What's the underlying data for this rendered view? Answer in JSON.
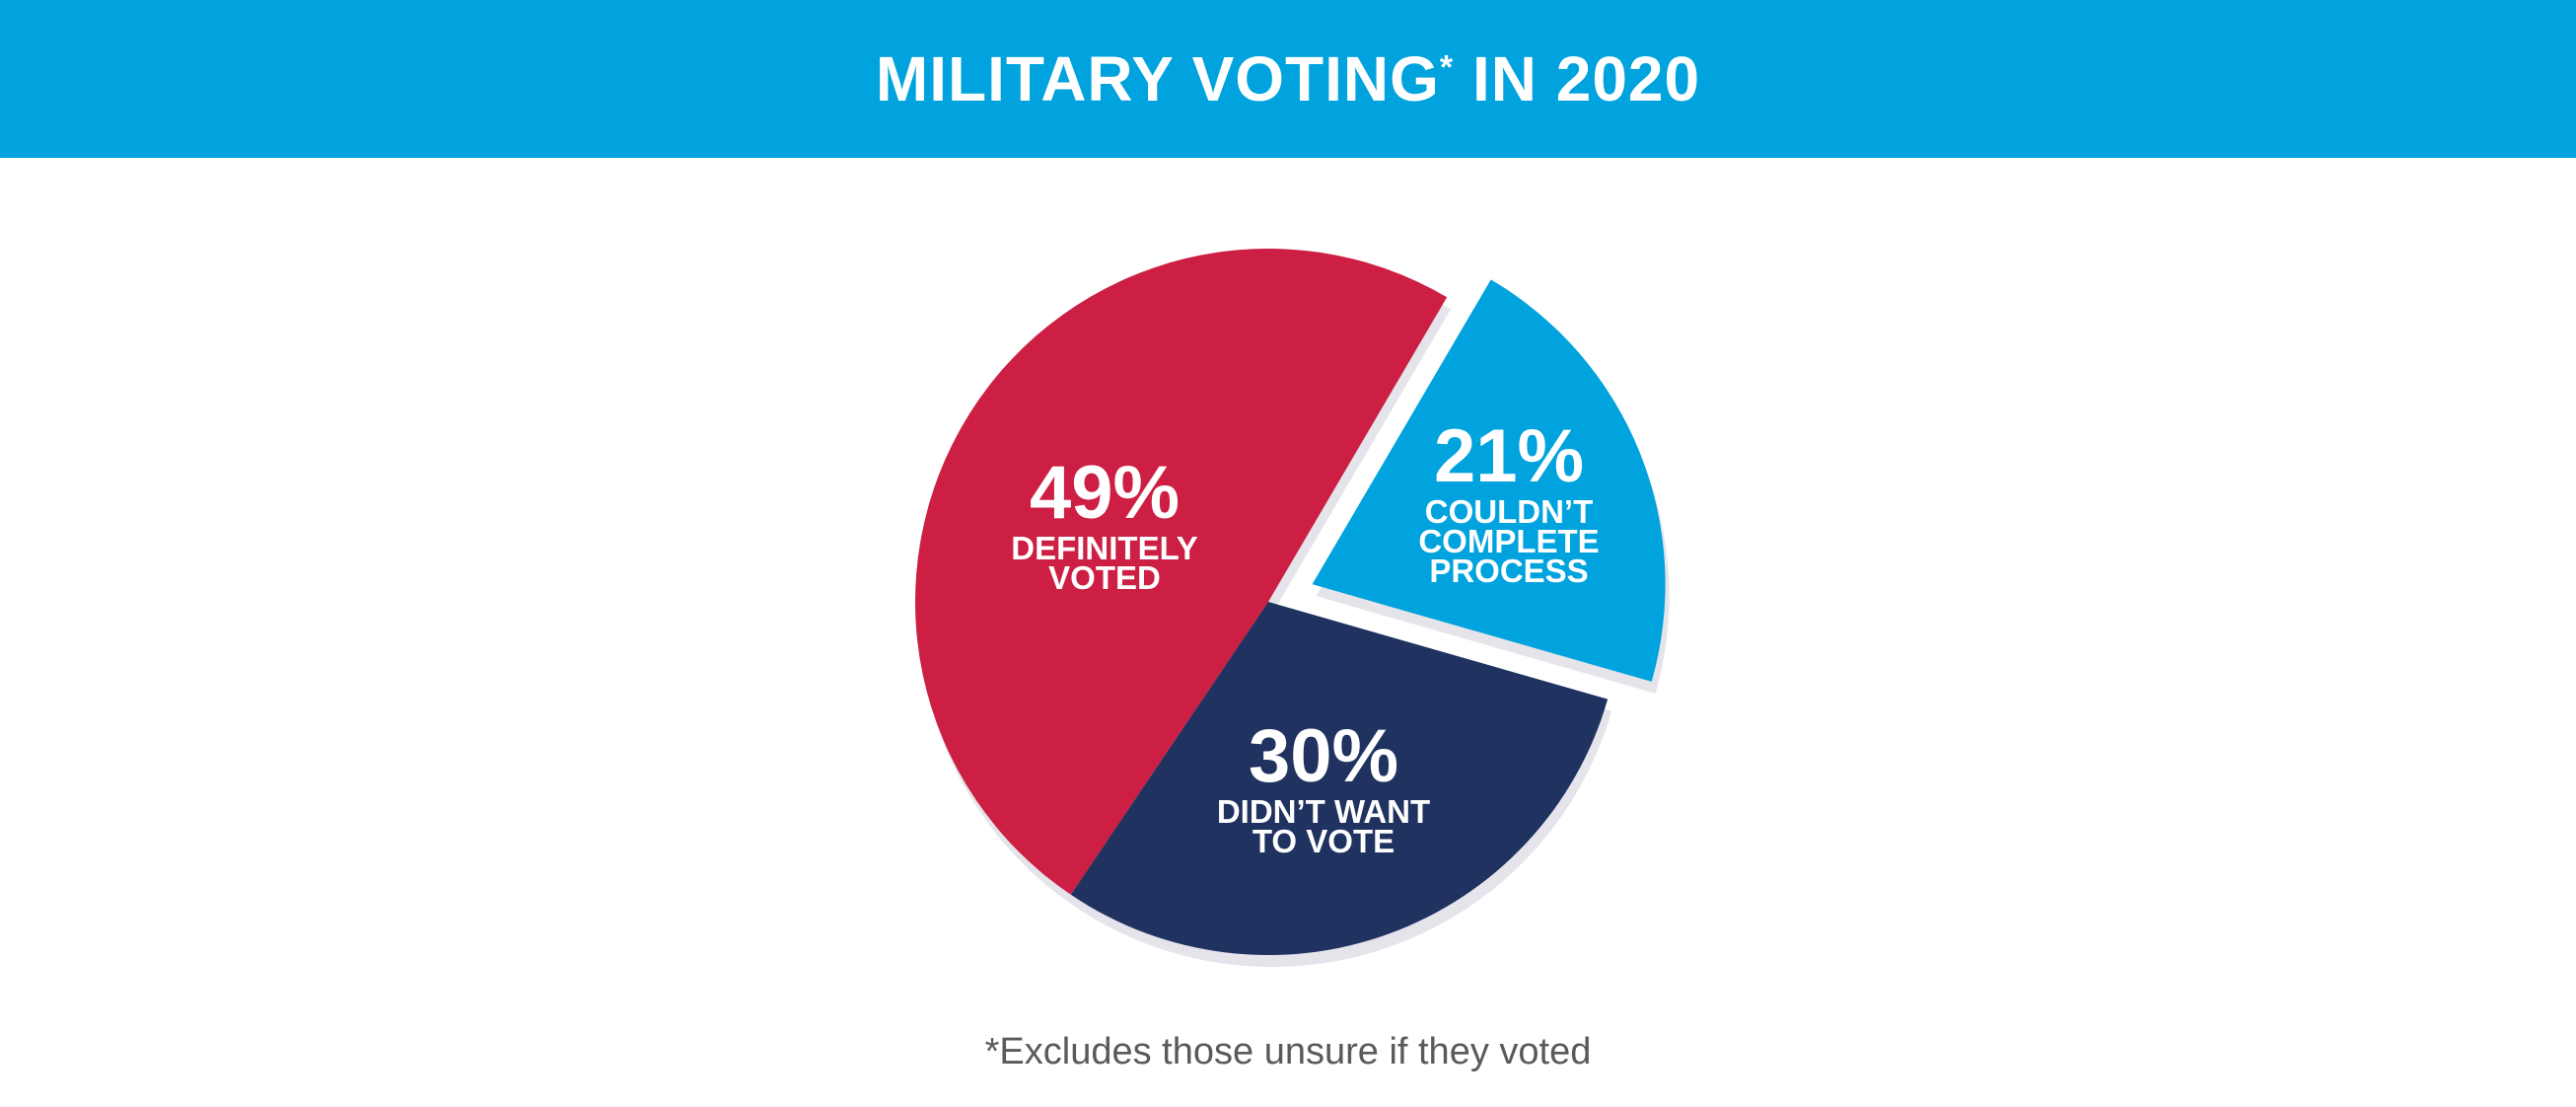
{
  "header": {
    "title_main": "MILITARY VOTING",
    "title_mark": "*",
    "title_rest": " IN 2020"
  },
  "colors": {
    "banner": "#00a3dd",
    "definitely_voted": "#cc1f43",
    "didnt_want": "#1f3260",
    "couldnt_complete": "#00a3dd",
    "shadow": "#e4e4ea"
  },
  "chart_data": {
    "type": "pie",
    "title": "MILITARY VOTING* IN 2020",
    "slices": [
      {
        "label_lines": [
          "DEFINITELY",
          "VOTED"
        ],
        "value": 49,
        "value_label": "49%",
        "color": "#cc1f43",
        "exploded": false
      },
      {
        "label_lines": [
          "DIDN’T WANT",
          "TO VOTE"
        ],
        "value": 30,
        "value_label": "30%",
        "color": "#1f3260",
        "exploded": false
      },
      {
        "label_lines": [
          "COULDN’T",
          "COMPLETE",
          "PROCESS"
        ],
        "value": 21,
        "value_label": "21%",
        "color": "#00a3dd",
        "exploded": true
      }
    ],
    "footnote": "*Excludes those unsure if they voted"
  }
}
